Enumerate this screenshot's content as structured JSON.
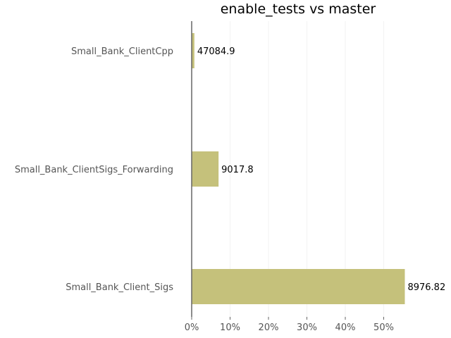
{
  "chart_data": {
    "type": "bar",
    "orientation": "horizontal",
    "title": "enable_tests vs master",
    "xlabel": "",
    "ylabel": "",
    "categories": [
      "Small_Bank_ClientCpp",
      "Small_Bank_ClientSigs_Forwarding",
      "Small_Bank_Client_Sigs"
    ],
    "values": [
      0.7,
      7.0,
      55.5
    ],
    "data_labels": [
      "47084.9",
      "9017.8",
      "8976.82"
    ],
    "xlim": [
      0,
      60
    ],
    "xticks": [
      0,
      10,
      20,
      30,
      40,
      50
    ],
    "xtick_labels": [
      "0%",
      "10%",
      "20%",
      "30%",
      "40%",
      "50%"
    ],
    "grid": true,
    "bar_color": "#c5c17b",
    "axis_color": "#666666",
    "grid_color": "#f2f2f2"
  }
}
